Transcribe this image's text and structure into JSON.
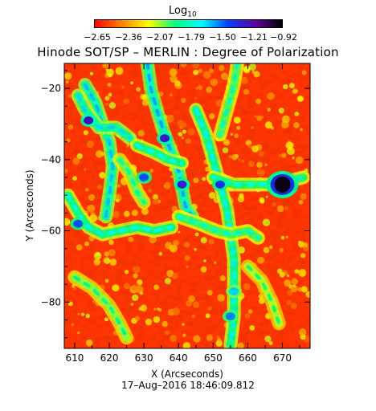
{
  "chart_data": {
    "type": "heatmap",
    "title": "Hinode SOT/SP – MERLIN : Degree of Polarization",
    "xlabel": "X (Arcseconds)",
    "ylabel": "Y (Arcseconds)",
    "xlim": [
      607,
      678
    ],
    "ylim": [
      -93,
      -13
    ],
    "x_ticks": [
      610,
      620,
      630,
      640,
      650,
      660,
      670
    ],
    "y_ticks": [
      -20,
      -40,
      -60,
      -80
    ],
    "x_tick_labels": [
      "610",
      "620",
      "630",
      "640",
      "650",
      "660",
      "670"
    ],
    "y_tick_labels": [
      "−20",
      "−40",
      "−60",
      "−80"
    ],
    "colorbar": {
      "label": "Log",
      "label_subscript": "10",
      "tick_labels": [
        "−2.65",
        "−2.36",
        "−2.07",
        "−1.79",
        "−1.50",
        "−1.21",
        "−0.92"
      ],
      "range": [
        -2.65,
        -0.92
      ],
      "colors": [
        "#ff0000",
        "#ff8000",
        "#ffff00",
        "#00ff80",
        "#00ffff",
        "#0040ff",
        "#6000a0",
        "#000000"
      ]
    },
    "features": [
      {
        "type": "network_lane",
        "points": [
          [
            613,
            -19
          ],
          [
            616,
            -24
          ],
          [
            618,
            -30
          ],
          [
            620,
            -35
          ],
          [
            621,
            -42
          ],
          [
            620,
            -50
          ],
          [
            619,
            -56
          ]
        ],
        "level": 0.62
      },
      {
        "type": "network_lane",
        "points": [
          [
            611,
            -22
          ],
          [
            613,
            -26
          ],
          [
            617,
            -31
          ],
          [
            622,
            -31
          ],
          [
            626,
            -34
          ]
        ],
        "level": 0.6
      },
      {
        "type": "network_lane",
        "points": [
          [
            608,
            -50
          ],
          [
            611,
            -55
          ],
          [
            614,
            -59
          ],
          [
            618,
            -61
          ],
          [
            623,
            -60
          ],
          [
            628,
            -59
          ],
          [
            633,
            -60
          ],
          [
            638,
            -59
          ]
        ],
        "level": 0.56
      },
      {
        "type": "network_lane",
        "points": [
          [
            631,
            -13
          ],
          [
            632,
            -20
          ],
          [
            634,
            -27
          ],
          [
            636,
            -33
          ],
          [
            638,
            -38
          ],
          [
            640,
            -43
          ],
          [
            641,
            -48
          ],
          [
            642,
            -53
          ],
          [
            644,
            -56
          ]
        ],
        "level": 0.64
      },
      {
        "type": "network_lane",
        "points": [
          [
            628,
            -36
          ],
          [
            633,
            -38
          ],
          [
            637,
            -40
          ],
          [
            641,
            -41
          ]
        ],
        "level": 0.56
      },
      {
        "type": "network_lane",
        "points": [
          [
            645,
            -26
          ],
          [
            648,
            -33
          ],
          [
            650,
            -40
          ],
          [
            652,
            -47
          ],
          [
            654,
            -54
          ],
          [
            655,
            -61
          ],
          [
            656,
            -68
          ],
          [
            656,
            -76
          ],
          [
            656,
            -84
          ],
          [
            655,
            -92
          ]
        ],
        "level": 0.58
      },
      {
        "type": "network_lane",
        "points": [
          [
            657,
            -13
          ],
          [
            656,
            -19
          ],
          [
            654,
            -26
          ],
          [
            652,
            -33
          ]
        ],
        "level": 0.5
      },
      {
        "type": "network_lane",
        "points": [
          [
            650,
            -45
          ],
          [
            656,
            -47
          ],
          [
            661,
            -47
          ],
          [
            666,
            -47
          ],
          [
            672,
            -46
          ],
          [
            676,
            -45
          ]
        ],
        "level": 0.54
      },
      {
        "type": "network_lane",
        "points": [
          [
            640,
            -56
          ],
          [
            646,
            -58
          ],
          [
            651,
            -60
          ],
          [
            655,
            -61
          ],
          [
            660,
            -60
          ],
          [
            663,
            -62
          ]
        ],
        "level": 0.52
      },
      {
        "type": "network_lane",
        "points": [
          [
            610,
            -73
          ],
          [
            615,
            -76
          ],
          [
            620,
            -81
          ],
          [
            623,
            -86
          ],
          [
            625,
            -90
          ]
        ],
        "level": 0.45
      },
      {
        "type": "network_lane",
        "points": [
          [
            623,
            -40
          ],
          [
            626,
            -44
          ],
          [
            628,
            -49
          ],
          [
            630,
            -52
          ]
        ],
        "level": 0.48
      },
      {
        "type": "network_lane",
        "points": [
          [
            660,
            -70
          ],
          [
            664,
            -74
          ],
          [
            667,
            -80
          ],
          [
            669,
            -86
          ]
        ],
        "level": 0.42
      },
      {
        "type": "pore",
        "points": [
          [
            670,
            -47
          ]
        ],
        "level": 0.98
      },
      {
        "type": "patch",
        "points": [
          [
            614,
            -29
          ]
        ],
        "level": 0.82
      },
      {
        "type": "patch",
        "points": [
          [
            636,
            -34
          ]
        ],
        "level": 0.8
      },
      {
        "type": "patch",
        "points": [
          [
            641,
            -47
          ]
        ],
        "level": 0.78
      },
      {
        "type": "patch",
        "points": [
          [
            652,
            -47
          ]
        ],
        "level": 0.74
      },
      {
        "type": "patch",
        "points": [
          [
            630,
            -45
          ]
        ],
        "level": 0.7
      },
      {
        "type": "patch",
        "points": [
          [
            611,
            -58
          ]
        ],
        "level": 0.7
      },
      {
        "type": "patch",
        "points": [
          [
            655,
            -84
          ]
        ],
        "level": 0.66
      },
      {
        "type": "patch",
        "points": [
          [
            656,
            -77
          ]
        ],
        "level": 0.6
      }
    ]
  },
  "footer": {
    "date": "17–Aug–2016 18:46:09.812"
  }
}
